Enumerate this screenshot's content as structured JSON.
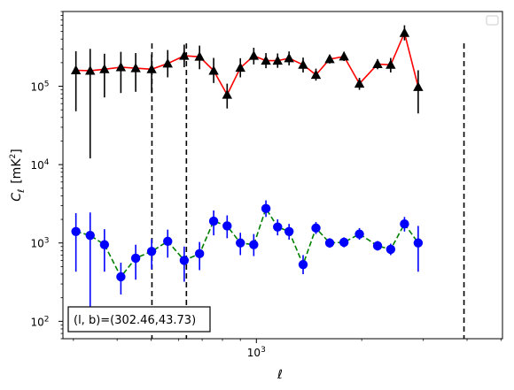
{
  "chart_data": {
    "type": "scatter",
    "title": "",
    "xlabel": "ℓ",
    "ylabel_main": "C",
    "ylabel_sub": "ℓ",
    "ylabel_unit": "[mK",
    "ylabel_unit_sup": "2",
    "ylabel_unit_close": "]",
    "xscale": "log",
    "yscale": "log",
    "xlim": [
      280,
      5050
    ],
    "ylim": [
      60,
      900000
    ],
    "x_ticks": [
      {
        "value": 1000,
        "base": "10",
        "exp": "3"
      }
    ],
    "y_ticks": [
      {
        "value": 100,
        "base": "10",
        "exp": "2"
      },
      {
        "value": 1000,
        "base": "10",
        "exp": "3"
      },
      {
        "value": 10000,
        "base": "10",
        "exp": "4"
      },
      {
        "value": 100000,
        "base": "10",
        "exp": "5"
      }
    ],
    "vlines": [
      503,
      631,
      3920
    ],
    "legend_placement": "top-right",
    "annotation": "(l, b)=(302.46,43.73)",
    "series": [
      {
        "marker": "triangle",
        "marker_color": "#000000",
        "line_color": "#ff0000",
        "line_style": "solid",
        "errorbar_color": "#000000",
        "points": [
          {
            "x": 305,
            "y": 160000,
            "lo": 48000,
            "hi": 280000
          },
          {
            "x": 335,
            "y": 158000,
            "lo": 12000,
            "hi": 300000
          },
          {
            "x": 368,
            "y": 165000,
            "lo": 72000,
            "hi": 260000
          },
          {
            "x": 410,
            "y": 175000,
            "lo": 82000,
            "hi": 275000
          },
          {
            "x": 452,
            "y": 170000,
            "lo": 85000,
            "hi": 265000
          },
          {
            "x": 502,
            "y": 165000,
            "lo": 82000,
            "hi": 255000
          },
          {
            "x": 558,
            "y": 195000,
            "lo": 130000,
            "hi": 290000
          },
          {
            "x": 622,
            "y": 245000,
            "lo": 175000,
            "hi": 340000
          },
          {
            "x": 688,
            "y": 238000,
            "lo": 165000,
            "hi": 330000
          },
          {
            "x": 755,
            "y": 158000,
            "lo": 110000,
            "hi": 230000
          },
          {
            "x": 825,
            "y": 78000,
            "lo": 52000,
            "hi": 108000
          },
          {
            "x": 900,
            "y": 172000,
            "lo": 130000,
            "hi": 228000
          },
          {
            "x": 983,
            "y": 245000,
            "lo": 190000,
            "hi": 310000
          },
          {
            "x": 1065,
            "y": 212000,
            "lo": 170000,
            "hi": 265000
          },
          {
            "x": 1150,
            "y": 212000,
            "lo": 172000,
            "hi": 262000
          },
          {
            "x": 1240,
            "y": 228000,
            "lo": 185000,
            "hi": 278000
          },
          {
            "x": 1360,
            "y": 188000,
            "lo": 150000,
            "hi": 232000
          },
          {
            "x": 1480,
            "y": 140000,
            "lo": 118000,
            "hi": 168000
          },
          {
            "x": 1620,
            "y": 222000,
            "lo": 195000,
            "hi": 252000
          },
          {
            "x": 1780,
            "y": 240000,
            "lo": 210000,
            "hi": 275000
          },
          {
            "x": 1970,
            "y": 108000,
            "lo": 90000,
            "hi": 128000
          },
          {
            "x": 2220,
            "y": 192000,
            "lo": 165000,
            "hi": 222000
          },
          {
            "x": 2420,
            "y": 188000,
            "lo": 150000,
            "hi": 230000
          },
          {
            "x": 2650,
            "y": 480000,
            "lo": 385000,
            "hi": 600000
          },
          {
            "x": 2900,
            "y": 98000,
            "lo": 45000,
            "hi": 160000
          }
        ]
      },
      {
        "marker": "circle",
        "marker_color": "#0000ff",
        "line_color": "#008000",
        "line_style": "dashed",
        "errorbar_color": "#0000ff",
        "points": [
          {
            "x": 305,
            "y": 1400,
            "lo": 430,
            "hi": 2400
          },
          {
            "x": 335,
            "y": 1250,
            "lo": 110,
            "hi": 2450
          },
          {
            "x": 368,
            "y": 950,
            "lo": 430,
            "hi": 1500
          },
          {
            "x": 410,
            "y": 370,
            "lo": 220,
            "hi": 560
          },
          {
            "x": 452,
            "y": 640,
            "lo": 340,
            "hi": 950
          },
          {
            "x": 502,
            "y": 780,
            "lo": 460,
            "hi": 1120
          },
          {
            "x": 558,
            "y": 1050,
            "lo": 650,
            "hi": 1480
          },
          {
            "x": 622,
            "y": 600,
            "lo": 320,
            "hi": 900
          },
          {
            "x": 688,
            "y": 730,
            "lo": 450,
            "hi": 1030
          },
          {
            "x": 755,
            "y": 1900,
            "lo": 1250,
            "hi": 2600
          },
          {
            "x": 825,
            "y": 1650,
            "lo": 1150,
            "hi": 2250
          },
          {
            "x": 900,
            "y": 1000,
            "lo": 700,
            "hi": 1350
          },
          {
            "x": 983,
            "y": 950,
            "lo": 680,
            "hi": 1300
          },
          {
            "x": 1065,
            "y": 2750,
            "lo": 2150,
            "hi": 3500
          },
          {
            "x": 1150,
            "y": 1600,
            "lo": 1250,
            "hi": 2000
          },
          {
            "x": 1240,
            "y": 1400,
            "lo": 1100,
            "hi": 1750
          },
          {
            "x": 1360,
            "y": 530,
            "lo": 400,
            "hi": 700
          },
          {
            "x": 1480,
            "y": 1550,
            "lo": 1300,
            "hi": 1850
          },
          {
            "x": 1620,
            "y": 1000,
            "lo": 870,
            "hi": 1150
          },
          {
            "x": 1780,
            "y": 1020,
            "lo": 880,
            "hi": 1180
          },
          {
            "x": 1970,
            "y": 1300,
            "lo": 1100,
            "hi": 1550
          },
          {
            "x": 2220,
            "y": 920,
            "lo": 800,
            "hi": 1060
          },
          {
            "x": 2420,
            "y": 830,
            "lo": 700,
            "hi": 980
          },
          {
            "x": 2650,
            "y": 1750,
            "lo": 1400,
            "hi": 2150
          },
          {
            "x": 2900,
            "y": 1000,
            "lo": 430,
            "hi": 1650
          }
        ]
      }
    ]
  }
}
